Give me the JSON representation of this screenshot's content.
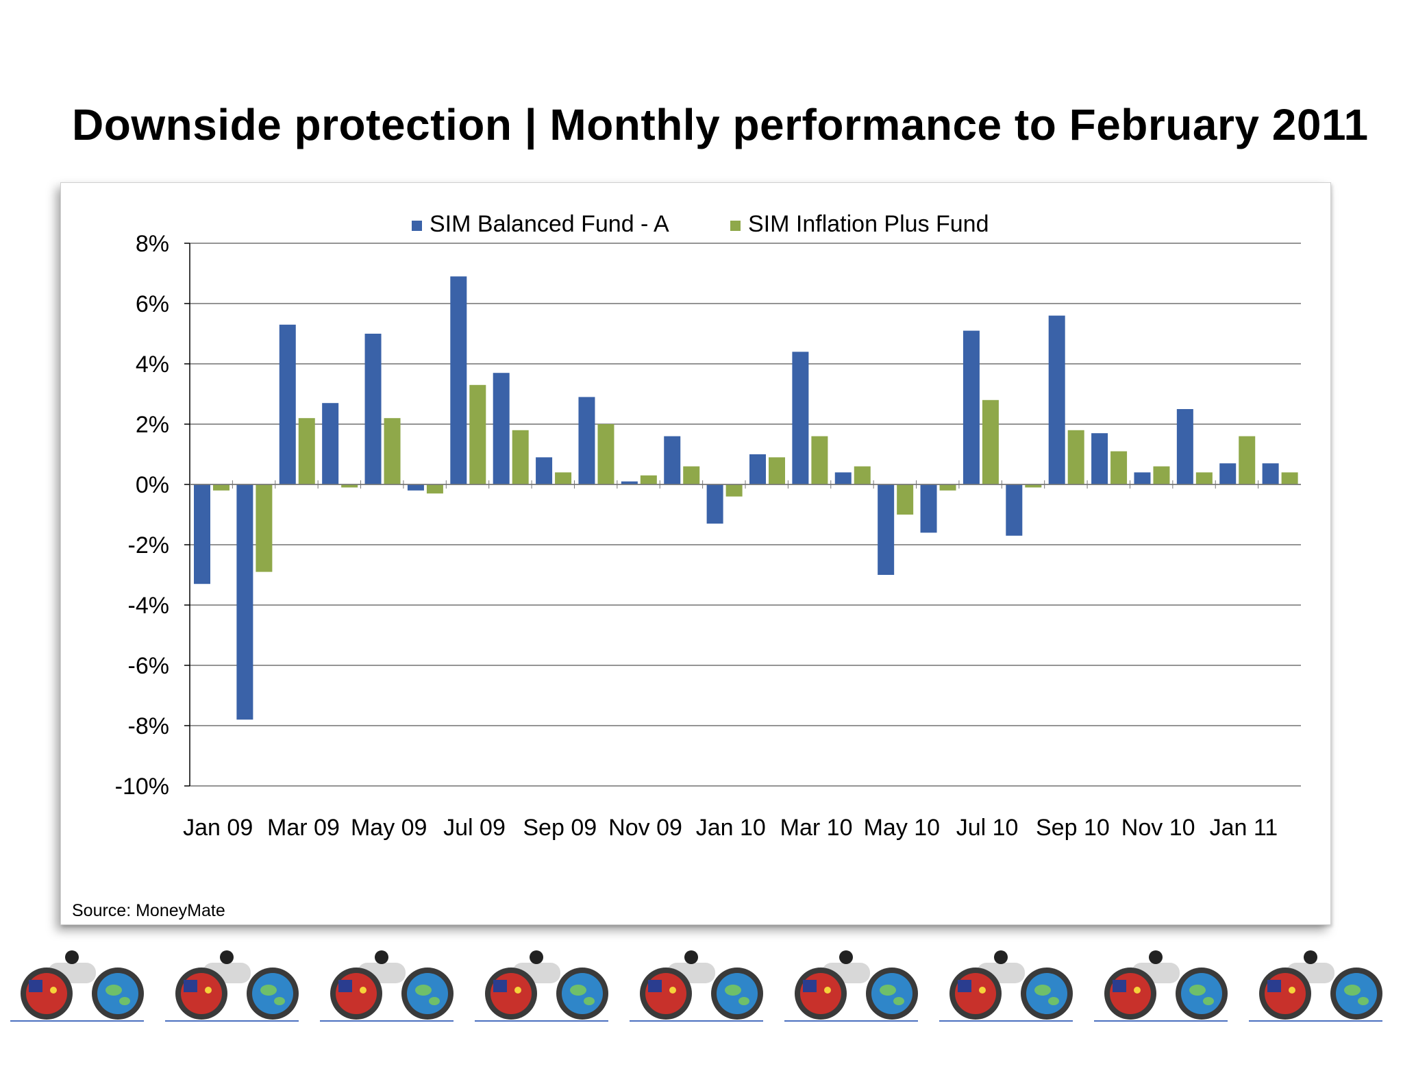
{
  "title": "Downside protection | Monthly performance to February 2011",
  "source": "Source: MoneyMate",
  "colors": {
    "balanced": "#3a62a8",
    "inflation": "#8fa84a",
    "grid": "#707070"
  },
  "icons": [
    "binoculars-icon"
  ],
  "chart_data": {
    "type": "bar",
    "categories": [
      "Jan 09",
      "Feb 09",
      "Mar 09",
      "Apr 09",
      "May 09",
      "Jun 09",
      "Jul 09",
      "Aug 09",
      "Sep 09",
      "Oct 09",
      "Nov 09",
      "Dec 09",
      "Jan 10",
      "Feb 10",
      "Mar 10",
      "Apr 10",
      "May 10",
      "Jun 10",
      "Jul 10",
      "Aug 10",
      "Sep 10",
      "Oct 10",
      "Nov 10",
      "Dec 10",
      "Jan 11",
      "Feb 11"
    ],
    "x_tick_labels": [
      "Jan 09",
      "Mar 09",
      "May 09",
      "Jul 09",
      "Sep 09",
      "Nov 09",
      "Jan 10",
      "Mar 10",
      "May 10",
      "Jul 10",
      "Sep 10",
      "Nov 10",
      "Jan 11"
    ],
    "series": [
      {
        "name": "SIM Balanced Fund - A",
        "color": "#3a62a8",
        "values": [
          -3.3,
          -7.8,
          5.3,
          2.7,
          5.0,
          -0.2,
          6.9,
          3.7,
          0.9,
          2.9,
          0.1,
          1.6,
          -1.3,
          1.0,
          4.4,
          0.4,
          -3.0,
          -1.6,
          5.1,
          -1.7,
          5.6,
          1.7,
          0.4,
          2.5,
          0.7,
          0.7
        ]
      },
      {
        "name": "SIM Inflation Plus Fund",
        "color": "#8fa84a",
        "values": [
          -0.2,
          -2.9,
          2.2,
          -0.1,
          2.2,
          -0.3,
          3.3,
          1.8,
          0.4,
          2.0,
          0.3,
          0.6,
          -0.4,
          0.9,
          1.6,
          0.6,
          -1.0,
          -0.2,
          2.8,
          -0.1,
          1.8,
          1.1,
          0.6,
          0.4,
          1.6,
          0.4
        ]
      }
    ],
    "y_ticks": [
      "8%",
      "6%",
      "4%",
      "2%",
      "0%",
      "-2%",
      "-4%",
      "-6%",
      "-8%",
      "-10%"
    ],
    "ylim": [
      -10,
      8
    ],
    "y_unit": "%",
    "grid": true,
    "legend_position": "top-center"
  }
}
